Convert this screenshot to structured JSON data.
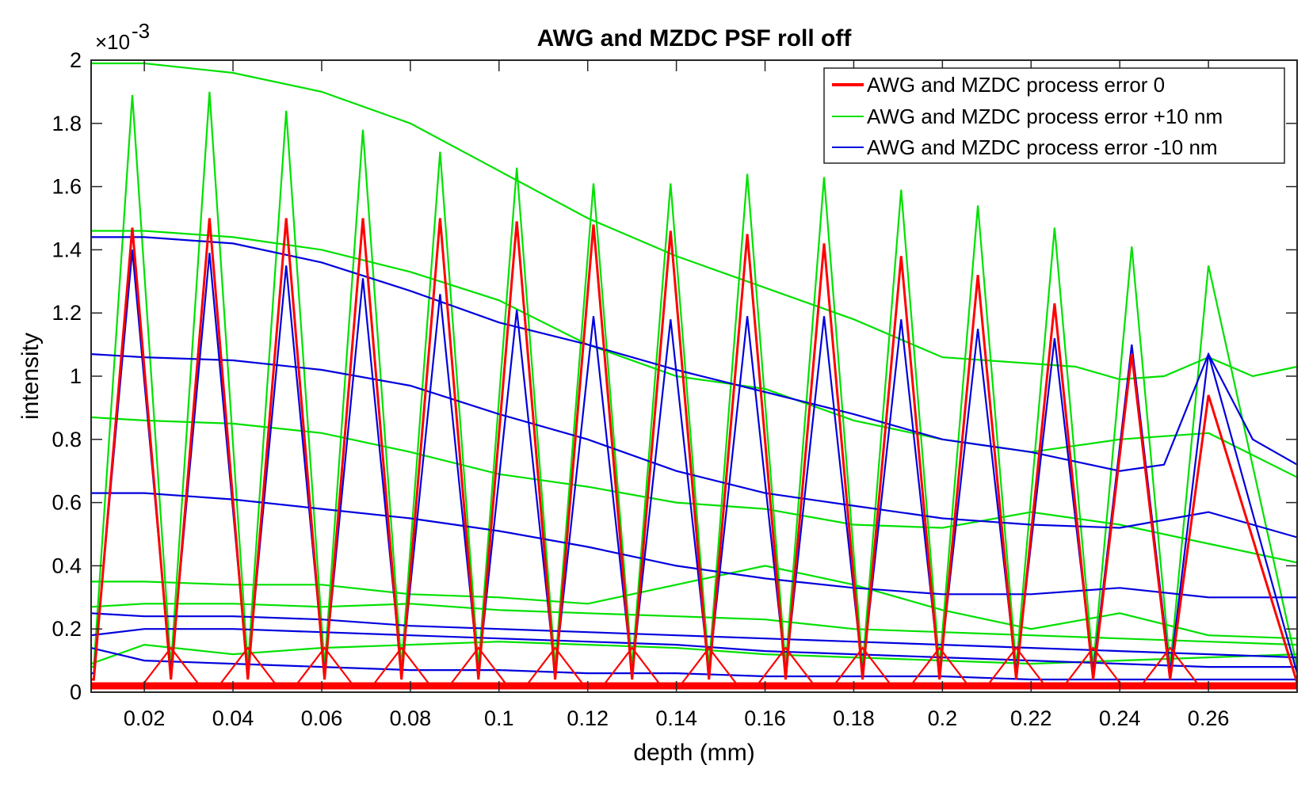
{
  "chart_data": {
    "type": "line",
    "title": "AWG and MZDC PSF roll off",
    "xlabel": "depth (mm)",
    "ylabel": "intensity",
    "y_exponent_label": "×10",
    "y_exponent_power": "-3",
    "xlim": [
      0.008,
      0.28
    ],
    "ylim": [
      0,
      2
    ],
    "xticks": [
      0.02,
      0.04,
      0.06,
      0.08,
      0.1,
      0.12,
      0.14,
      0.16,
      0.18,
      0.2,
      0.22,
      0.24,
      0.26
    ],
    "xtick_labels": [
      "0.02",
      "0.04",
      "0.06",
      "0.08",
      "0.1",
      "0.12",
      "0.14",
      "0.16",
      "0.18",
      "0.2",
      "0.22",
      "0.24",
      "0.26"
    ],
    "yticks": [
      0,
      0.2,
      0.4,
      0.6,
      0.8,
      1,
      1.2,
      1.4,
      1.6,
      1.8,
      2
    ],
    "ytick_labels": [
      "0",
      "0.2",
      "0.4",
      "0.6",
      "0.8",
      "1",
      "1.2",
      "1.4",
      "1.6",
      "1.8",
      "2"
    ],
    "legend_position": "top-right",
    "legend": [
      {
        "label": "AWG and MZDC process error 0",
        "color": "#ff0000"
      },
      {
        "label": "AWG and MZDC process error +10 nm",
        "color": "#00e000"
      },
      {
        "label": "AWG and MZDC process error -10 nm",
        "color": "#0000dd"
      }
    ],
    "series": [
      {
        "name": "AWG and MZDC process error 0",
        "color": "#ff0000",
        "peak_depths": [
          0.0173,
          0.0347,
          0.052,
          0.0693,
          0.0867,
          0.104,
          0.1213,
          0.1387,
          0.156,
          0.1733,
          0.1907,
          0.208,
          0.2253,
          0.2427,
          0.26
        ],
        "peak_values": [
          1.47,
          1.5,
          1.5,
          1.5,
          1.5,
          1.49,
          1.48,
          1.46,
          1.45,
          1.42,
          1.38,
          1.32,
          1.23,
          1.07,
          0.94
        ],
        "floor_value": 0.04,
        "side_value": 0.14,
        "end_point": [
          0.28,
          0.03
        ]
      },
      {
        "name": "AWG and MZDC process error +10 nm",
        "color": "#00e000",
        "peak_depths": [
          0.0173,
          0.0347,
          0.052,
          0.0693,
          0.0867,
          0.104,
          0.1213,
          0.1387,
          0.156,
          0.1733,
          0.1907,
          0.208,
          0.2253,
          0.2427,
          0.26
        ],
        "peak_values": [
          1.89,
          1.9,
          1.84,
          1.78,
          1.71,
          1.66,
          1.61,
          1.61,
          1.64,
          1.63,
          1.59,
          1.54,
          1.47,
          1.41,
          1.35
        ],
        "floor_value": 0.08,
        "envelopes": [
          {
            "x": [
              0.008,
              0.02,
              0.04,
              0.06,
              0.08,
              0.1,
              0.12,
              0.14,
              0.16,
              0.18,
              0.2,
              0.22,
              0.23,
              0.24,
              0.25,
              0.26,
              0.27,
              0.28
            ],
            "y": [
              1.99,
              1.99,
              1.96,
              1.9,
              1.8,
              1.65,
              1.5,
              1.38,
              1.28,
              1.18,
              1.06,
              1.04,
              1.03,
              0.99,
              1.0,
              1.06,
              1.0,
              1.03
            ]
          },
          {
            "x": [
              0.008,
              0.02,
              0.04,
              0.06,
              0.08,
              0.1,
              0.12,
              0.14,
              0.16,
              0.18,
              0.2,
              0.22,
              0.24,
              0.26,
              0.28
            ],
            "y": [
              1.46,
              1.46,
              1.44,
              1.4,
              1.33,
              1.24,
              1.1,
              1.0,
              0.96,
              0.86,
              0.8,
              0.76,
              0.8,
              0.82,
              0.68
            ]
          },
          {
            "x": [
              0.008,
              0.02,
              0.04,
              0.06,
              0.08,
              0.1,
              0.12,
              0.14,
              0.16,
              0.18,
              0.2,
              0.22,
              0.24,
              0.26,
              0.28
            ],
            "y": [
              0.87,
              0.86,
              0.85,
              0.82,
              0.76,
              0.69,
              0.65,
              0.6,
              0.58,
              0.53,
              0.52,
              0.57,
              0.53,
              0.47,
              0.41
            ]
          },
          {
            "x": [
              0.008,
              0.02,
              0.04,
              0.06,
              0.08,
              0.1,
              0.12,
              0.14,
              0.16,
              0.18,
              0.2,
              0.22,
              0.24,
              0.26,
              0.28
            ],
            "y": [
              0.35,
              0.35,
              0.34,
              0.34,
              0.31,
              0.3,
              0.28,
              0.34,
              0.4,
              0.34,
              0.26,
              0.2,
              0.25,
              0.18,
              0.17
            ]
          },
          {
            "x": [
              0.008,
              0.02,
              0.04,
              0.06,
              0.08,
              0.1,
              0.12,
              0.14,
              0.16,
              0.18,
              0.2,
              0.22,
              0.24,
              0.26,
              0.28
            ],
            "y": [
              0.27,
              0.28,
              0.28,
              0.27,
              0.28,
              0.26,
              0.25,
              0.24,
              0.23,
              0.2,
              0.19,
              0.18,
              0.17,
              0.16,
              0.15
            ]
          },
          {
            "x": [
              0.008,
              0.02,
              0.04,
              0.06,
              0.08,
              0.1,
              0.12,
              0.14,
              0.16,
              0.18,
              0.2,
              0.22,
              0.24,
              0.26,
              0.28
            ],
            "y": [
              0.09,
              0.15,
              0.12,
              0.14,
              0.15,
              0.16,
              0.15,
              0.14,
              0.12,
              0.11,
              0.1,
              0.09,
              0.1,
              0.11,
              0.12
            ]
          }
        ]
      },
      {
        "name": "AWG and MZDC process error -10 nm",
        "color": "#0000dd",
        "peak_depths": [
          0.0173,
          0.0347,
          0.052,
          0.0693,
          0.0867,
          0.104,
          0.1213,
          0.1387,
          0.156,
          0.1733,
          0.1907,
          0.208,
          0.2253,
          0.2427,
          0.26
        ],
        "peak_values": [
          1.4,
          1.39,
          1.35,
          1.31,
          1.26,
          1.21,
          1.19,
          1.18,
          1.19,
          1.19,
          1.18,
          1.15,
          1.12,
          1.1,
          1.07
        ],
        "floor_value": 0.06,
        "envelopes": [
          {
            "x": [
              0.008,
              0.02,
              0.04,
              0.06,
              0.08,
              0.1,
              0.12,
              0.14,
              0.16,
              0.18,
              0.2,
              0.22,
              0.24,
              0.25,
              0.26,
              0.27,
              0.28
            ],
            "y": [
              1.44,
              1.44,
              1.42,
              1.36,
              1.27,
              1.17,
              1.1,
              1.02,
              0.95,
              0.88,
              0.8,
              0.76,
              0.7,
              0.72,
              1.07,
              0.8,
              0.72
            ]
          },
          {
            "x": [
              0.008,
              0.02,
              0.04,
              0.06,
              0.08,
              0.1,
              0.12,
              0.14,
              0.16,
              0.18,
              0.2,
              0.22,
              0.24,
              0.26,
              0.28
            ],
            "y": [
              1.07,
              1.06,
              1.05,
              1.02,
              0.97,
              0.88,
              0.8,
              0.7,
              0.63,
              0.59,
              0.55,
              0.53,
              0.52,
              0.57,
              0.49
            ]
          },
          {
            "x": [
              0.008,
              0.02,
              0.04,
              0.06,
              0.08,
              0.1,
              0.12,
              0.14,
              0.16,
              0.18,
              0.2,
              0.22,
              0.24,
              0.26,
              0.28
            ],
            "y": [
              0.63,
              0.63,
              0.61,
              0.58,
              0.55,
              0.51,
              0.46,
              0.4,
              0.36,
              0.33,
              0.31,
              0.31,
              0.33,
              0.3,
              0.3
            ]
          },
          {
            "x": [
              0.008,
              0.02,
              0.04,
              0.06,
              0.08,
              0.1,
              0.12,
              0.14,
              0.16,
              0.18,
              0.2,
              0.22,
              0.24,
              0.26,
              0.28
            ],
            "y": [
              0.25,
              0.24,
              0.24,
              0.23,
              0.21,
              0.2,
              0.19,
              0.18,
              0.17,
              0.16,
              0.15,
              0.14,
              0.13,
              0.12,
              0.11
            ]
          },
          {
            "x": [
              0.008,
              0.02,
              0.04,
              0.06,
              0.08,
              0.1,
              0.12,
              0.14,
              0.16,
              0.18,
              0.2,
              0.22,
              0.24,
              0.26,
              0.28
            ],
            "y": [
              0.18,
              0.2,
              0.2,
              0.19,
              0.18,
              0.17,
              0.16,
              0.15,
              0.13,
              0.12,
              0.11,
              0.1,
              0.09,
              0.08,
              0.08
            ]
          },
          {
            "x": [
              0.008,
              0.02,
              0.04,
              0.06,
              0.08,
              0.1,
              0.12,
              0.14,
              0.16,
              0.18,
              0.2,
              0.22,
              0.24,
              0.26,
              0.28
            ],
            "y": [
              0.14,
              0.1,
              0.09,
              0.08,
              0.07,
              0.07,
              0.06,
              0.06,
              0.05,
              0.05,
              0.05,
              0.04,
              0.04,
              0.04,
              0.04
            ]
          }
        ]
      }
    ]
  }
}
